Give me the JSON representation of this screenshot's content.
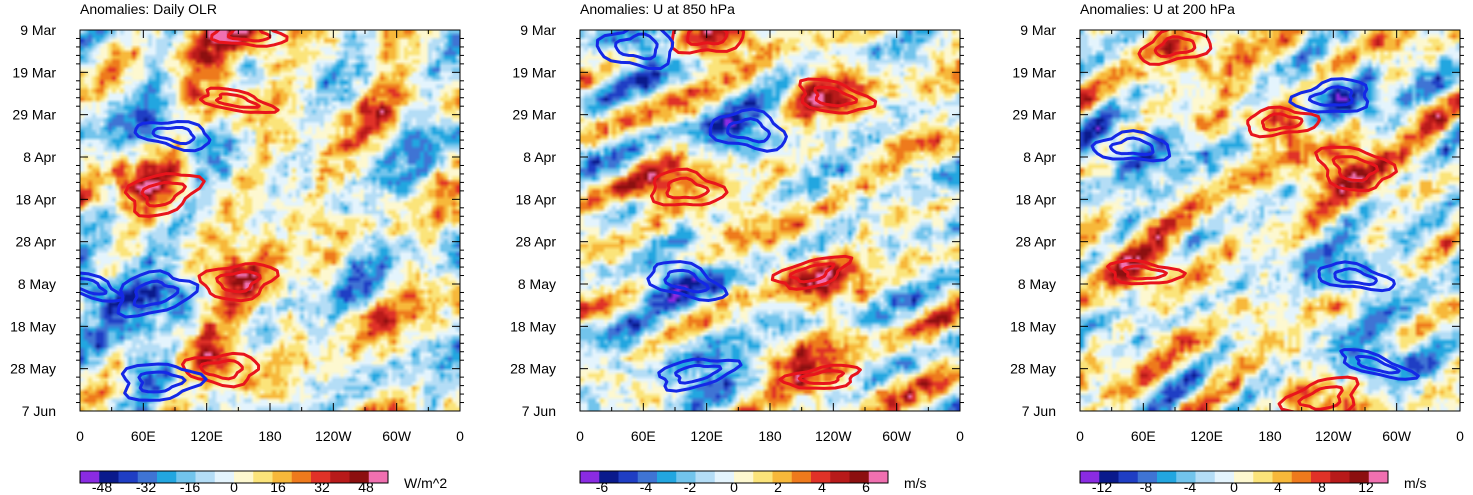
{
  "chart_data": [
    {
      "type": "heatmap",
      "title": "Anomalies: Daily OLR",
      "units": "W/m^2",
      "x_ticks": [
        "0",
        "60E",
        "120E",
        "180",
        "120W",
        "60W",
        "0"
      ],
      "y_ticks": [
        "9 Mar",
        "19 Mar",
        "29 Mar",
        "8 Apr",
        "18 Apr",
        "28 Apr",
        "8 May",
        "18 May",
        "28 May",
        "7 Jun"
      ],
      "colorbar_labels": [
        "-48",
        "-32",
        "-16",
        "0",
        "16",
        "32",
        "48"
      ],
      "colorbar_range": [
        -56,
        56
      ],
      "contours": [
        {
          "color": "red",
          "lon": 160,
          "day": 1
        },
        {
          "color": "red",
          "lon": 148,
          "day": 17
        },
        {
          "color": "red",
          "lon": 78,
          "day": 39
        },
        {
          "color": "red",
          "lon": 150,
          "day": 60
        },
        {
          "color": "red",
          "lon": 135,
          "day": 81
        },
        {
          "color": "blue",
          "lon": 90,
          "day": 25
        },
        {
          "color": "blue",
          "lon": 5,
          "day": 61
        },
        {
          "color": "blue",
          "lon": 70,
          "day": 63
        },
        {
          "color": "blue",
          "lon": 75,
          "day": 84
        }
      ]
    },
    {
      "type": "heatmap",
      "title": "Anomalies: U at 850 hPa",
      "units": "m/s",
      "x_ticks": [
        "0",
        "60E",
        "120E",
        "180",
        "120W",
        "60W",
        "0"
      ],
      "y_ticks": [
        "9 Mar",
        "19 Mar",
        "29 Mar",
        "8 Apr",
        "18 Apr",
        "28 Apr",
        "8 May",
        "18 May",
        "28 May",
        "7 Jun"
      ],
      "colorbar_labels": [
        "-6",
        "-4",
        "-2",
        "0",
        "2",
        "4",
        "6"
      ],
      "colorbar_range": [
        -7,
        7
      ],
      "contours": [
        {
          "color": "red",
          "lon": 120,
          "day": 1
        },
        {
          "color": "red",
          "lon": 100,
          "day": 38
        },
        {
          "color": "red",
          "lon": 240,
          "day": 16
        },
        {
          "color": "red",
          "lon": 220,
          "day": 58
        },
        {
          "color": "red",
          "lon": 230,
          "day": 83
        },
        {
          "color": "blue",
          "lon": 55,
          "day": 4
        },
        {
          "color": "blue",
          "lon": 160,
          "day": 24
        },
        {
          "color": "blue",
          "lon": 100,
          "day": 60
        },
        {
          "color": "blue",
          "lon": 110,
          "day": 82
        }
      ]
    },
    {
      "type": "heatmap",
      "title": "Anomalies: U at 200 hPa",
      "units": "m/s",
      "x_ticks": [
        "0",
        "60E",
        "120E",
        "180",
        "120W",
        "60W",
        "0"
      ],
      "y_ticks": [
        "9 Mar",
        "19 Mar",
        "29 Mar",
        "8 Apr",
        "18 Apr",
        "28 Apr",
        "8 May",
        "18 May",
        "28 May",
        "7 Jun"
      ],
      "colorbar_labels": [
        "-12",
        "-8",
        "-4",
        "0",
        "4",
        "8",
        "12"
      ],
      "colorbar_range": [
        -14,
        14
      ],
      "contours": [
        {
          "color": "red",
          "lon": 90,
          "day": 4
        },
        {
          "color": "red",
          "lon": 190,
          "day": 22
        },
        {
          "color": "red",
          "lon": 60,
          "day": 58
        },
        {
          "color": "red",
          "lon": 260,
          "day": 33
        },
        {
          "color": "red",
          "lon": 230,
          "day": 88
        },
        {
          "color": "blue",
          "lon": 240,
          "day": 16
        },
        {
          "color": "blue",
          "lon": 50,
          "day": 28
        },
        {
          "color": "blue",
          "lon": 260,
          "day": 59
        },
        {
          "color": "blue",
          "lon": 280,
          "day": 80
        }
      ]
    }
  ]
}
